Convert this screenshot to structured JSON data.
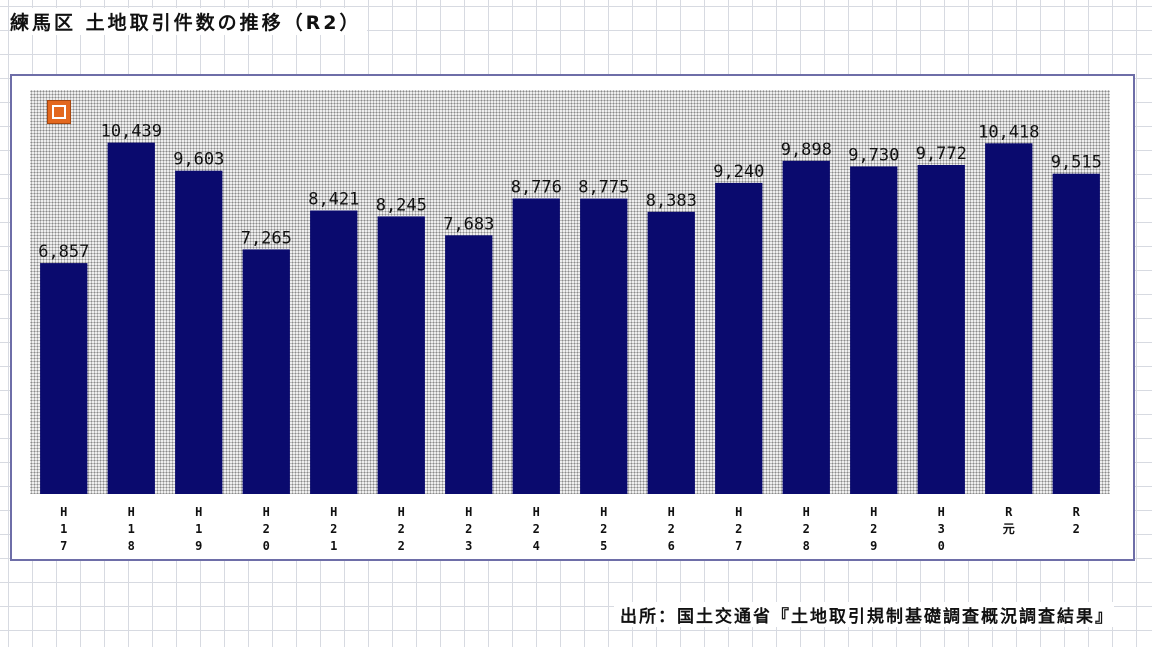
{
  "title": "練馬区 土地取引件数の推移（R2）",
  "source": "出所：国土交通省『土地取引規制基礎調査概況調査結果』",
  "logo": {
    "name": "logo-badge-icon",
    "color": "#e3681f"
  },
  "colors": {
    "bar": "#0a0a6e",
    "frame": "#6e6ea8"
  },
  "chart_data": {
    "type": "bar",
    "title": "練馬区 土地取引件数の推移（R2）",
    "categories": [
      "H17",
      "H18",
      "H19",
      "H20",
      "H21",
      "H22",
      "H23",
      "H24",
      "H25",
      "H26",
      "H27",
      "H28",
      "H29",
      "H30",
      "R元",
      "R2"
    ],
    "tick_labels": [
      [
        "H",
        "1",
        "7"
      ],
      [
        "H",
        "1",
        "8"
      ],
      [
        "H",
        "1",
        "9"
      ],
      [
        "H",
        "2",
        "0"
      ],
      [
        "H",
        "2",
        "1"
      ],
      [
        "H",
        "2",
        "2"
      ],
      [
        "H",
        "2",
        "3"
      ],
      [
        "H",
        "2",
        "4"
      ],
      [
        "H",
        "2",
        "5"
      ],
      [
        "H",
        "2",
        "6"
      ],
      [
        "H",
        "2",
        "7"
      ],
      [
        "H",
        "2",
        "8"
      ],
      [
        "H",
        "2",
        "9"
      ],
      [
        "H",
        "3",
        "0"
      ],
      [
        "R",
        "元"
      ],
      [
        "R",
        "2"
      ]
    ],
    "values": [
      6857,
      10439,
      9603,
      7265,
      8421,
      8245,
      7683,
      8776,
      8775,
      8383,
      9240,
      9898,
      9730,
      9772,
      10418,
      9515
    ],
    "data_labels": [
      "6,857",
      "10,439",
      "9,603",
      "7,265",
      "8,421",
      "8,245",
      "7,683",
      "8,776",
      "8,775",
      "8,383",
      "9,240",
      "9,898",
      "9,730",
      "9,772",
      "10,418",
      "9,515"
    ],
    "ylim": [
      0,
      12000
    ],
    "xlabel": "",
    "ylabel": "",
    "grid": false,
    "legend": "none"
  }
}
